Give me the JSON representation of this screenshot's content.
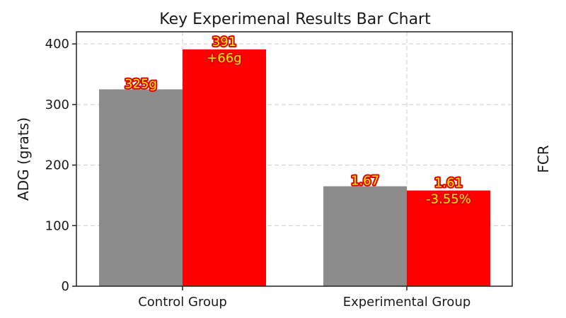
{
  "chart_data": {
    "type": "bar",
    "title": "Key Experimenal Results Bar Chart",
    "ylabel": "ADG (grats)",
    "y2label": "FCR",
    "ylim": [
      0,
      420
    ],
    "yticks": [
      0,
      100,
      200,
      300,
      400
    ],
    "grid": true,
    "categories": [
      "Control Group",
      "Experimental Group"
    ],
    "bars": [
      {
        "category": "Control Group",
        "value": 325,
        "label": "325g",
        "color": "#8c8c8c"
      },
      {
        "category": "Control Group",
        "value": 391,
        "label": "391\n+66g",
        "color": "#ff0000"
      },
      {
        "category": "Experimental Group",
        "value": 165,
        "label": "1.67",
        "color": "#8c8c8c"
      },
      {
        "category": "Experimental Group",
        "value": 158,
        "label": "1.61\n-3.55%",
        "color": "#ff0000"
      }
    ]
  }
}
